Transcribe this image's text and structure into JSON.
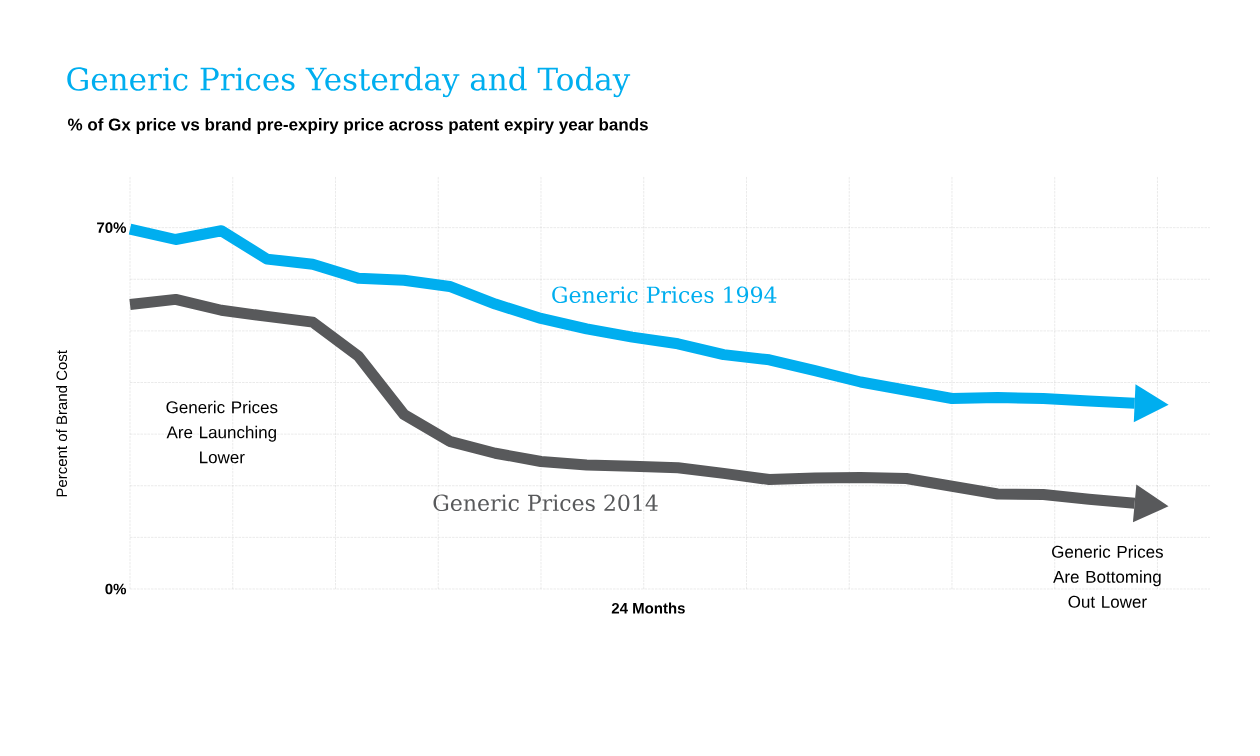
{
  "chart_data": {
    "type": "line",
    "title": "Generic Prices Yesterday and Today",
    "subtitle": "% of Gx price vs brand pre-expiry price across patent expiry year bands",
    "xlabel": "24 Months",
    "ylabel": "Percent of Brand Cost",
    "categories": [
      null,
      null,
      null,
      null,
      null,
      null,
      null,
      null,
      null,
      null,
      null,
      null,
      null,
      null,
      null,
      null,
      null,
      null,
      null,
      null,
      null,
      null,
      null
    ],
    "ylim": [
      0,
      80
    ],
    "yticks": [
      {
        "value": 0,
        "label": "0%"
      },
      {
        "value": 10,
        "label": null
      },
      {
        "value": 20,
        "label": null
      },
      {
        "value": 30,
        "label": null
      },
      {
        "value": 40,
        "label": null
      },
      {
        "value": 50,
        "label": null
      },
      {
        "value": 60,
        "label": null
      },
      {
        "value": 70,
        "label": "70%"
      }
    ],
    "tick_labels": "y",
    "grid": true,
    "marker": "none",
    "line_style": "solid",
    "series": [
      {
        "name": "Generic Prices 1994",
        "color": "#00aeef",
        "values": [
          69.7,
          67.7,
          69.4,
          63.9,
          62.9,
          60.2,
          59.8,
          58.6,
          55.2,
          52.4,
          50.4,
          48.8,
          47.5,
          45.4,
          44.4,
          42.3,
          40.1,
          38.5,
          36.9,
          37.1,
          36.9,
          36.4,
          36.0
        ]
      },
      {
        "name": "Generic Prices 2014",
        "color": "#58595b",
        "values": [
          55.1,
          56.1,
          54.0,
          52.8,
          51.7,
          45.1,
          33.8,
          28.6,
          26.3,
          24.7,
          24.0,
          23.8,
          23.5,
          22.4,
          21.2,
          21.5,
          21.6,
          21.4,
          19.9,
          18.4,
          18.3,
          17.4,
          16.6
        ]
      }
    ],
    "annotations": [
      "Generic Prices Are Launching Lower",
      "Generic Prices Are Bottoming Out Lower"
    ]
  }
}
